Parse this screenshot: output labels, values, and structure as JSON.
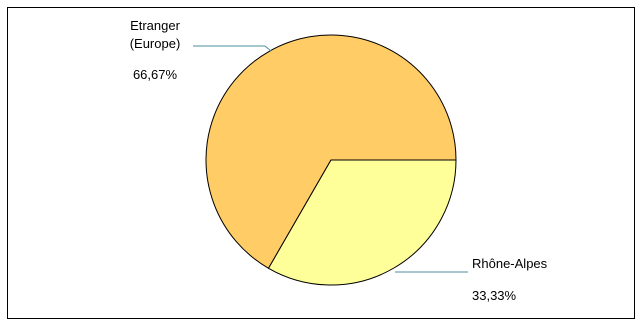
{
  "chart_data": {
    "type": "pie",
    "title": "",
    "slices": [
      {
        "label_lines": [
          "Etranger",
          "(Europe)"
        ],
        "value_text": "66,67%",
        "value": 66.67,
        "color": "#ffcc66"
      },
      {
        "label_lines": [
          "Rhône-Alpes"
        ],
        "value_text": "33,33%",
        "value": 33.33,
        "color": "#ffff99"
      }
    ],
    "start_angle_deg": 0,
    "direction": "clockwise",
    "slice_outline_color": "#000000",
    "leader_line_color": "#4d8f9e",
    "legend": "none"
  }
}
